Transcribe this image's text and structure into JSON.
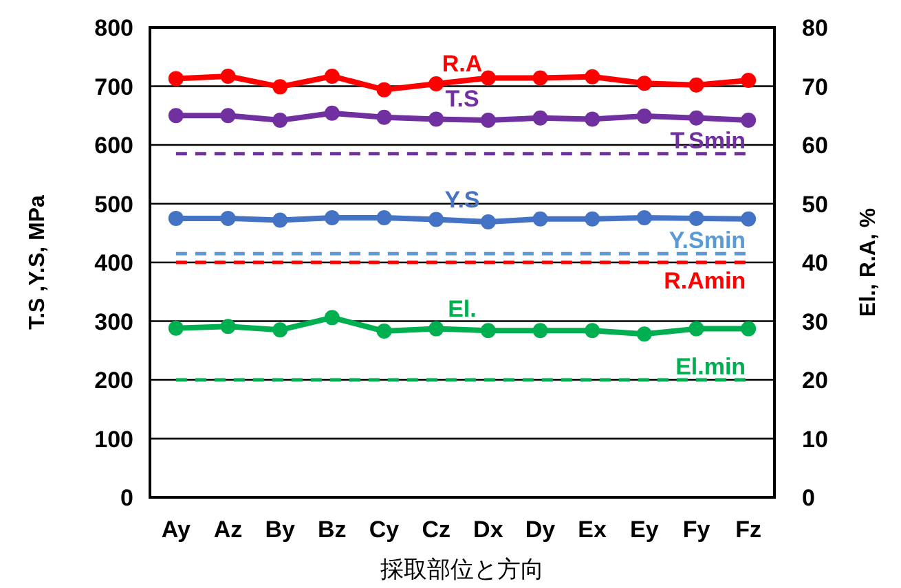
{
  "chart_data": {
    "type": "line",
    "xlabel": "採取部位と方向",
    "ylabel": "T.S ,Y.S, MPa",
    "y2label": "El., R.A, %",
    "categories": [
      "Ay",
      "Az",
      "By",
      "Bz",
      "Cy",
      "Cz",
      "Dx",
      "Dy",
      "Ex",
      "Ey",
      "Fy",
      "Fz"
    ],
    "series": [
      {
        "name": "R.A",
        "color": "#ff0000",
        "axis": "y2",
        "values": [
          71.3,
          71.7,
          69.9,
          71.7,
          69.4,
          70.4,
          71.4,
          71.4,
          71.6,
          70.5,
          70.2,
          71.0
        ]
      },
      {
        "name": "T.S",
        "color": "#7030a0",
        "values": [
          650,
          650,
          642,
          654,
          647,
          644,
          642,
          646,
          644,
          649,
          646,
          642
        ]
      },
      {
        "name": "Y.S",
        "color": "#4472c4",
        "values": [
          475,
          475,
          472,
          476,
          476,
          473,
          469,
          474,
          474,
          476,
          475,
          474
        ]
      },
      {
        "name": "El.",
        "color": "#00b050",
        "axis": "y2",
        "values": [
          28.8,
          29.1,
          28.5,
          30.6,
          28.3,
          28.7,
          28.4,
          28.4,
          28.4,
          27.8,
          28.7,
          28.7
        ]
      }
    ],
    "ref_lines": [
      {
        "axis": "y",
        "value": 585,
        "label": "T.Smin",
        "color": "#7030a0",
        "line_style": "dashed"
      },
      {
        "axis": "y",
        "value": 415,
        "label": "Y.Smin",
        "color": "#5b9bd5",
        "line_style": "dashed"
      },
      {
        "axis": "y2",
        "value": 40,
        "label": "R.Amin",
        "color": "#ff0000",
        "line_style": "dashed"
      },
      {
        "axis": "y2",
        "value": 20,
        "label": "El.min",
        "color": "#00b050",
        "line_style": "dashed"
      }
    ],
    "ylim": [
      0,
      800
    ],
    "yticks": [
      0,
      100,
      200,
      300,
      400,
      500,
      600,
      700,
      800
    ],
    "y2lim": [
      0,
      80
    ],
    "y2ticks": [
      0,
      10,
      20,
      30,
      40,
      50,
      60,
      70,
      80
    ],
    "grid": "y",
    "marker": "circle",
    "line_style": "solid"
  }
}
